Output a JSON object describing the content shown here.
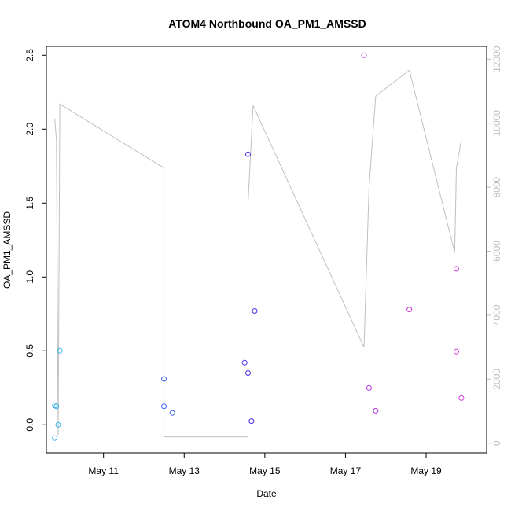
{
  "chart_data": {
    "type": "scatter",
    "title": "ATOM4 Northbound OA_PM1_AMSSD",
    "xlabel": "Date",
    "ylabel": "OA_PM1_AMSSD",
    "x_axis_kind": "date",
    "xlim": [
      "2018-05-09T14:00",
      "2018-05-20T12:00"
    ],
    "ylim": [
      -0.19,
      2.56
    ],
    "y2lim": [
      -300,
      12400
    ],
    "grid": false,
    "x_ticks": [
      {
        "value": "2018-05-11T00:00",
        "label": "May 11"
      },
      {
        "value": "2018-05-13T00:00",
        "label": "May 13"
      },
      {
        "value": "2018-05-15T00:00",
        "label": "May 15"
      },
      {
        "value": "2018-05-17T00:00",
        "label": "May 17"
      },
      {
        "value": "2018-05-19T00:00",
        "label": "May 19"
      }
    ],
    "y_ticks": [
      {
        "value": 0.0,
        "label": "0.0"
      },
      {
        "value": 0.5,
        "label": "0.5"
      },
      {
        "value": 1.0,
        "label": "1.0"
      },
      {
        "value": 1.5,
        "label": "1.5"
      },
      {
        "value": 2.0,
        "label": "2.0"
      },
      {
        "value": 2.5,
        "label": "2.5"
      }
    ],
    "y2_ticks": [
      {
        "value": 0,
        "label": "0"
      },
      {
        "value": 2000,
        "label": "2000"
      },
      {
        "value": 4000,
        "label": "4000"
      },
      {
        "value": 6000,
        "label": "6000"
      },
      {
        "value": 8000,
        "label": "8000"
      },
      {
        "value": 10000,
        "label": "10000"
      },
      {
        "value": 12000,
        "label": "12000"
      }
    ],
    "points": [
      {
        "x": "2018-05-09T19:00",
        "y": -0.09,
        "color": "#33b3ee"
      },
      {
        "x": "2018-05-09T19:00",
        "y": 0.13,
        "color": "#33b3ee"
      },
      {
        "x": "2018-05-09T20:00",
        "y": 0.125,
        "color": "#33b3ee"
      },
      {
        "x": "2018-05-09T21:00",
        "y": 0.0,
        "color": "#33b3ee"
      },
      {
        "x": "2018-05-09T22:00",
        "y": 0.5,
        "color": "#33b3ee"
      },
      {
        "x": "2018-05-12T12:00",
        "y": 0.31,
        "color": "#3560ea"
      },
      {
        "x": "2018-05-12T12:00",
        "y": 0.125,
        "color": "#3560ea"
      },
      {
        "x": "2018-05-12T17:00",
        "y": 0.08,
        "color": "#3560ea"
      },
      {
        "x": "2018-05-14T12:00",
        "y": 0.42,
        "color": "#4b2ce8"
      },
      {
        "x": "2018-05-14T14:00",
        "y": 0.35,
        "color": "#4b2ce8"
      },
      {
        "x": "2018-05-14T14:00",
        "y": 1.83,
        "color": "#4b2ce8"
      },
      {
        "x": "2018-05-14T16:00",
        "y": 0.025,
        "color": "#4b2ce8"
      },
      {
        "x": "2018-05-14T18:00",
        "y": 0.77,
        "color": "#4b2ce8"
      },
      {
        "x": "2018-05-17T11:00",
        "y": 2.5,
        "color": "#b02fe0"
      },
      {
        "x": "2018-05-17T14:00",
        "y": 0.25,
        "color": "#b02fe0"
      },
      {
        "x": "2018-05-17T18:00",
        "y": 0.095,
        "color": "#b02fe0"
      },
      {
        "x": "2018-05-18T14:00",
        "y": 0.78,
        "color": "#c737d8"
      },
      {
        "x": "2018-05-19T18:00",
        "y": 1.055,
        "color": "#d63ae0"
      },
      {
        "x": "2018-05-19T18:00",
        "y": 0.495,
        "color": "#d63ae0"
      },
      {
        "x": "2018-05-19T21:00",
        "y": 0.18,
        "color": "#d63ae0"
      }
    ],
    "line": {
      "axis": "right",
      "color": "#c0c0c0",
      "values": [
        {
          "x": "2018-05-09T19:00",
          "y": 10150
        },
        {
          "x": "2018-05-09T20:00",
          "y": 9450
        },
        {
          "x": "2018-05-09T21:00",
          "y": 250
        },
        {
          "x": "2018-05-09T22:00",
          "y": 10600
        },
        {
          "x": "2018-05-12T12:00",
          "y": 8600
        },
        {
          "x": "2018-05-12T12:00",
          "y": 200
        },
        {
          "x": "2018-05-13T06:00",
          "y": 200
        },
        {
          "x": "2018-05-14T14:00",
          "y": 200
        },
        {
          "x": "2018-05-14T14:00",
          "y": 7500
        },
        {
          "x": "2018-05-14T17:00",
          "y": 10550
        },
        {
          "x": "2018-05-17T11:00",
          "y": 3000
        },
        {
          "x": "2018-05-17T14:00",
          "y": 8000
        },
        {
          "x": "2018-05-17T18:00",
          "y": 10850
        },
        {
          "x": "2018-05-18T14:00",
          "y": 11650
        },
        {
          "x": "2018-05-19T17:00",
          "y": 5950
        },
        {
          "x": "2018-05-19T18:00",
          "y": 8600
        },
        {
          "x": "2018-05-19T21:00",
          "y": 9500
        }
      ]
    }
  }
}
